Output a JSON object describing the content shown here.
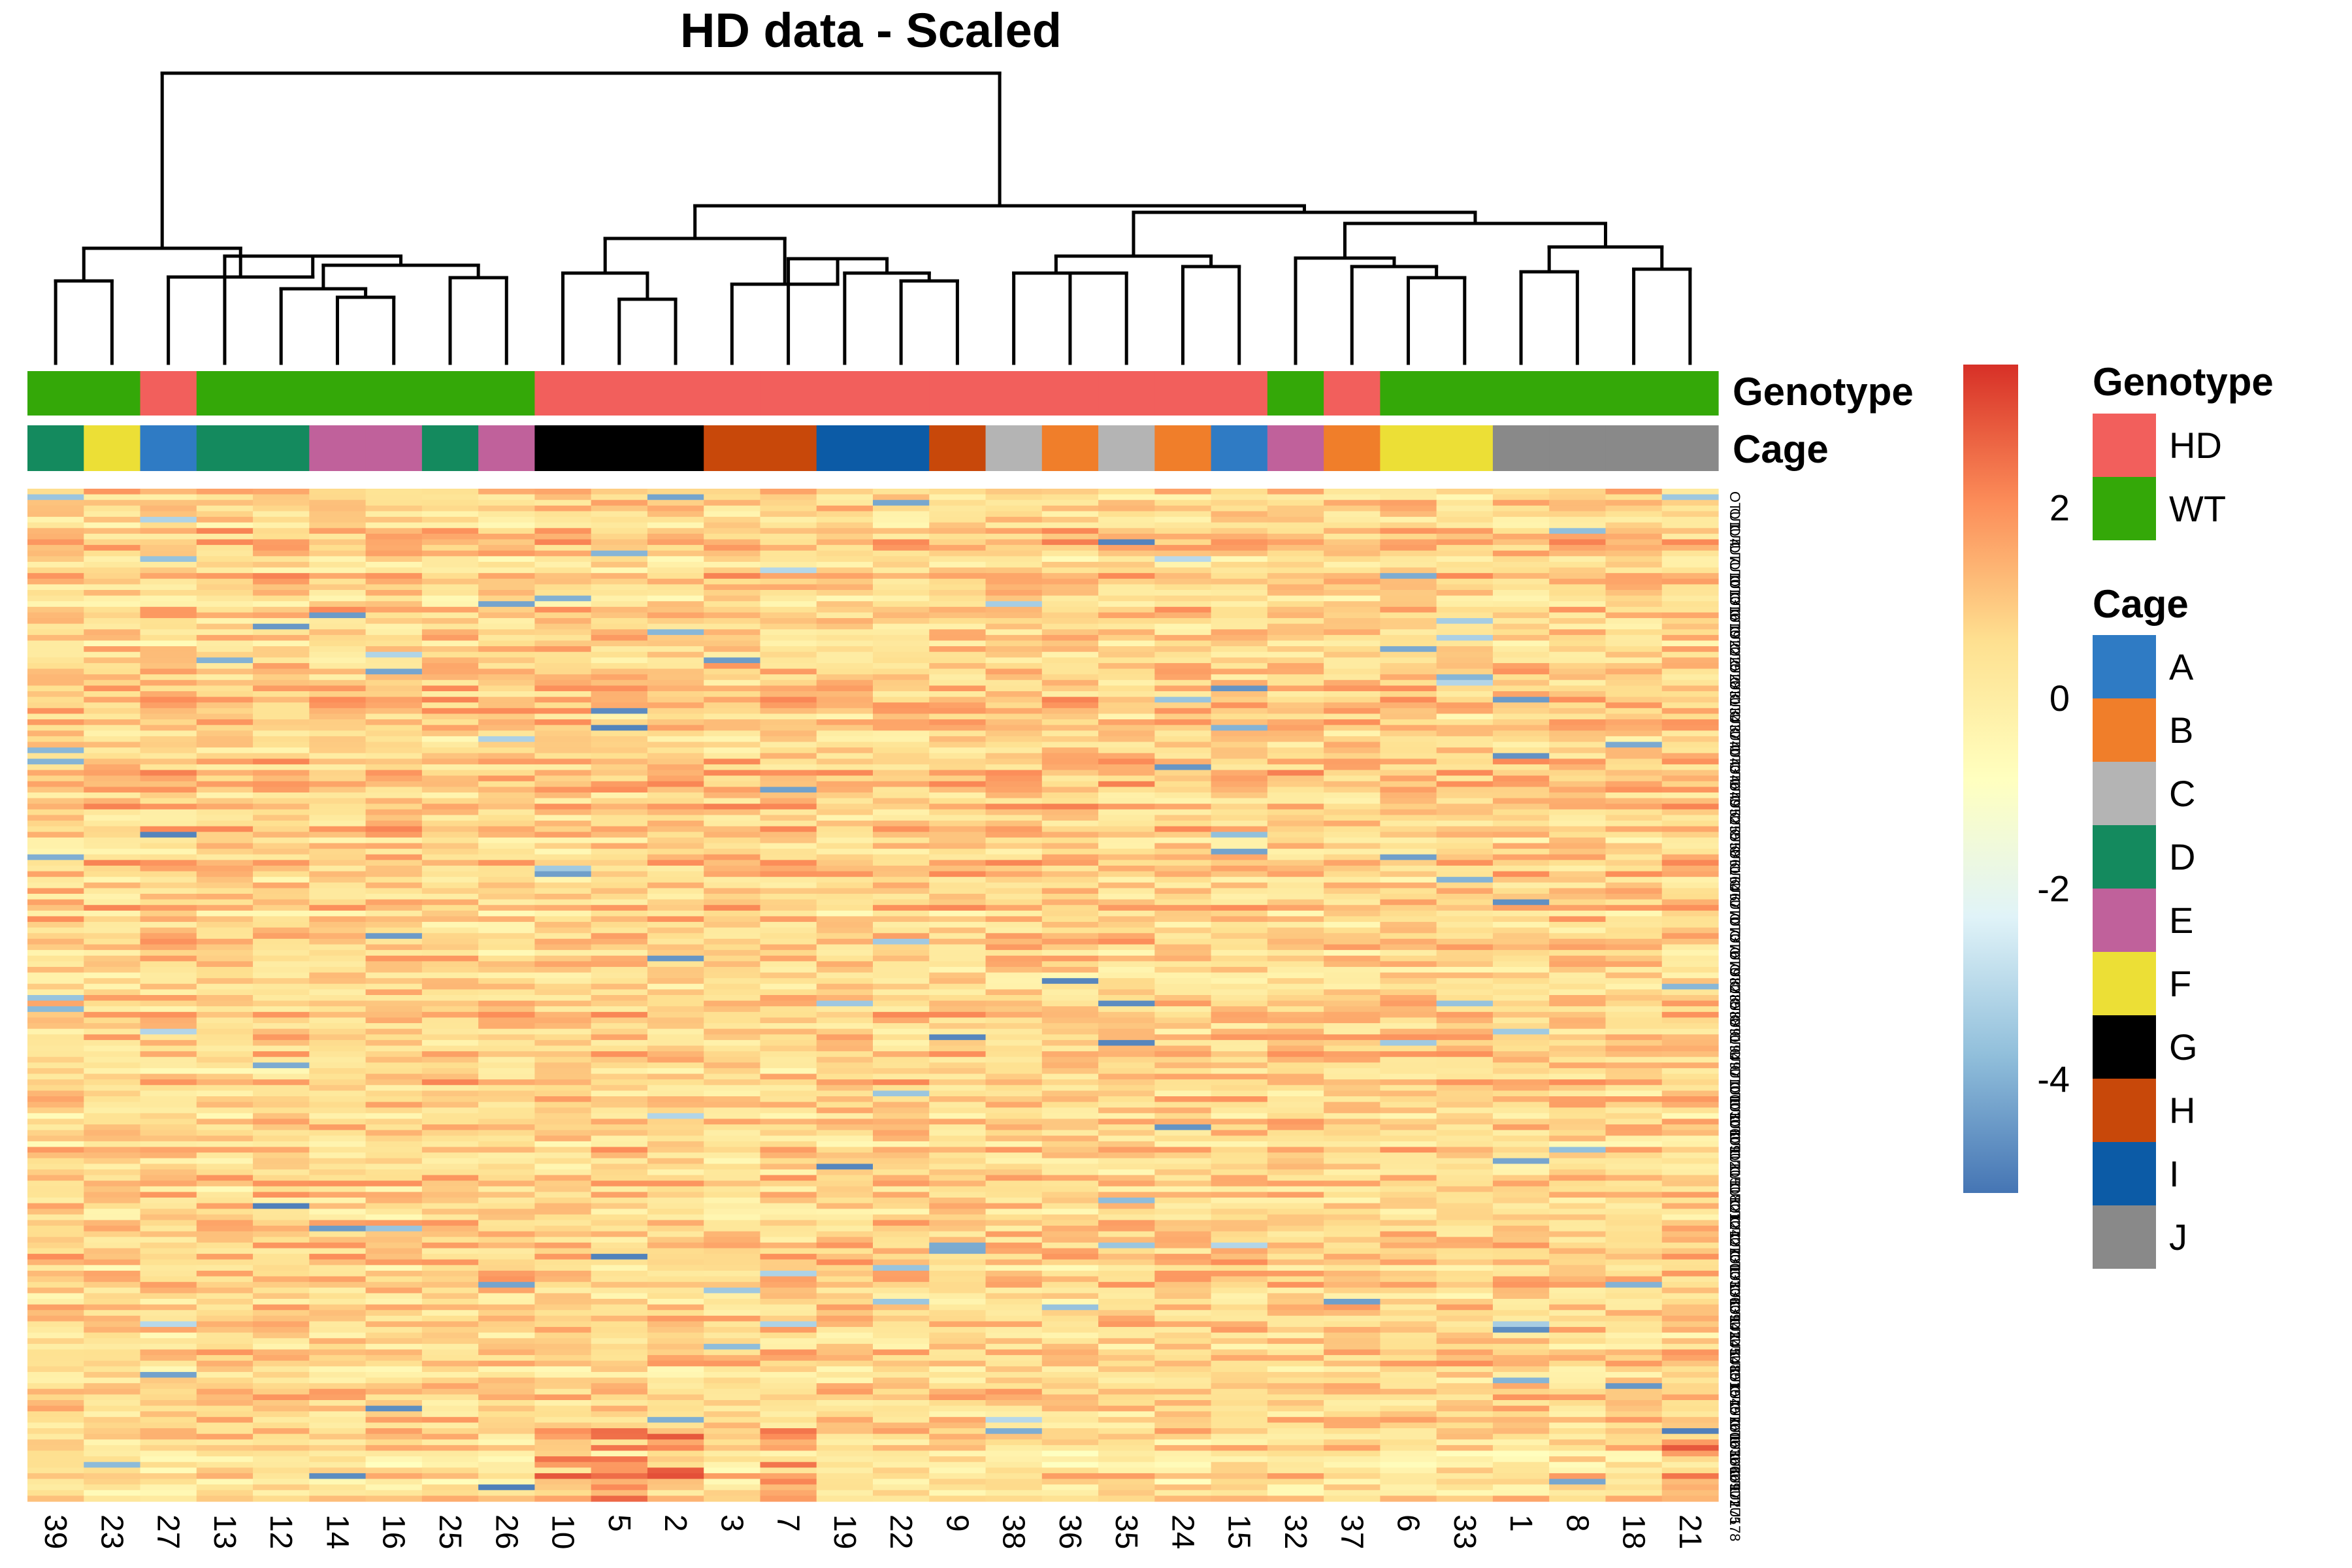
{
  "chart_data": {
    "type": "heatmap",
    "title": "HD data - Scaled",
    "columns": [
      "39",
      "23",
      "27",
      "13",
      "12",
      "14",
      "16",
      "25",
      "26",
      "10",
      "5",
      "2",
      "3",
      "7",
      "19",
      "22",
      "9",
      "38",
      "36",
      "35",
      "24",
      "15",
      "32",
      "37",
      "6",
      "33",
      "1",
      "8",
      "18",
      "21"
    ],
    "annotations": {
      "Genotype": [
        "WT",
        "WT",
        "HD",
        "WT",
        "WT",
        "WT",
        "WT",
        "WT",
        "WT",
        "HD",
        "HD",
        "HD",
        "HD",
        "HD",
        "HD",
        "HD",
        "HD",
        "HD",
        "HD",
        "HD",
        "HD",
        "HD",
        "WT",
        "HD",
        "WT",
        "WT",
        "WT",
        "WT",
        "WT",
        "WT"
      ],
      "Cage": [
        "D",
        "F",
        "A",
        "D",
        "D",
        "E",
        "E",
        "D",
        "E",
        "G",
        "G",
        "G",
        "H",
        "H",
        "I",
        "I",
        "H",
        "C",
        "B",
        "C",
        "B",
        "A",
        "E",
        "B",
        "F",
        "F",
        "J",
        "J",
        "J",
        "J"
      ]
    },
    "annotation_labels": [
      "Genotype",
      "Cage"
    ],
    "row_label_prefix": "OTU",
    "row_count": 180,
    "color_scale": {
      "ticks": [
        2,
        0,
        -2,
        -4
      ],
      "range": [
        -5.2,
        3.5
      ],
      "colors": [
        "#4575b4",
        "#91bfdb",
        "#e0f3f8",
        "#ffffbf",
        "#fee090",
        "#fc8d59",
        "#d73027"
      ]
    },
    "legend": {
      "Genotype": {
        "title": "Genotype",
        "items": [
          {
            "label": "HD",
            "color": "#f25f5c"
          },
          {
            "label": "WT",
            "color": "#34a808"
          }
        ]
      },
      "Cage": {
        "title": "Cage",
        "items": [
          {
            "label": "A",
            "color": "#2f7bc4"
          },
          {
            "label": "B",
            "color": "#f07e2a"
          },
          {
            "label": "C",
            "color": "#b4b4b4"
          },
          {
            "label": "D",
            "color": "#148a5e"
          },
          {
            "label": "E",
            "color": "#c0619b"
          },
          {
            "label": "F",
            "color": "#ecdf36"
          },
          {
            "label": "G",
            "color": "#000000"
          },
          {
            "label": "H",
            "color": "#c8480a"
          },
          {
            "label": "I",
            "color": "#0c5ba6"
          },
          {
            "label": "J",
            "color": "#898989"
          }
        ]
      }
    },
    "legend_placement": "right"
  }
}
